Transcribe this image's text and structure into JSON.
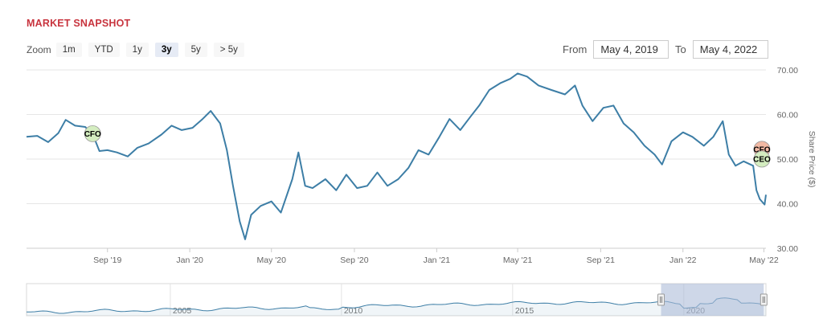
{
  "header": {
    "title": "MARKET SNAPSHOT",
    "title_color": "#c8343e"
  },
  "zoom": {
    "label": "Zoom",
    "buttons": [
      "1m",
      "YTD",
      "1y",
      "3y",
      "5y",
      "> 5y"
    ],
    "active": "3y"
  },
  "range": {
    "from_label": "From",
    "from_value": "May 4, 2019",
    "to_label": "To",
    "to_value": "May 4, 2022"
  },
  "chart_data": {
    "type": "line",
    "title": "",
    "ylabel": "Share Price ($)",
    "ylim": [
      30,
      70
    ],
    "yticks": [
      "30.00",
      "40.00",
      "50.00",
      "60.00",
      "70.00"
    ],
    "xlim": [
      "2019-05-04",
      "2022-05-04"
    ],
    "xticks": [
      "Sep '19",
      "Jan '20",
      "May '20",
      "Sep '20",
      "Jan '21",
      "May '21",
      "Sep '21",
      "Jan '22",
      "May '22"
    ],
    "line_color": "#3d7ea6",
    "grid": true,
    "series": [
      {
        "values": [
          [
            "2019-05-04",
            55.0
          ],
          [
            "2019-05-20",
            55.2
          ],
          [
            "2019-06-05",
            53.8
          ],
          [
            "2019-06-20",
            55.8
          ],
          [
            "2019-07-01",
            58.8
          ],
          [
            "2019-07-15",
            57.5
          ],
          [
            "2019-07-30",
            57.2
          ],
          [
            "2019-08-10",
            55.6
          ],
          [
            "2019-08-20",
            51.8
          ],
          [
            "2019-09-01",
            52.0
          ],
          [
            "2019-09-15",
            51.5
          ],
          [
            "2019-10-01",
            50.6
          ],
          [
            "2019-10-15",
            52.5
          ],
          [
            "2019-11-01",
            53.5
          ],
          [
            "2019-11-20",
            55.5
          ],
          [
            "2019-12-05",
            57.5
          ],
          [
            "2019-12-20",
            56.5
          ],
          [
            "2020-01-05",
            57.0
          ],
          [
            "2020-01-20",
            59.0
          ],
          [
            "2020-02-01",
            60.8
          ],
          [
            "2020-02-15",
            58.0
          ],
          [
            "2020-02-25",
            52.0
          ],
          [
            "2020-03-05",
            44.0
          ],
          [
            "2020-03-15",
            36.0
          ],
          [
            "2020-03-23",
            32.0
          ],
          [
            "2020-04-01",
            37.5
          ],
          [
            "2020-04-15",
            39.5
          ],
          [
            "2020-05-01",
            40.5
          ],
          [
            "2020-05-15",
            38.0
          ],
          [
            "2020-06-01",
            45.5
          ],
          [
            "2020-06-10",
            51.5
          ],
          [
            "2020-06-20",
            44.0
          ],
          [
            "2020-07-01",
            43.5
          ],
          [
            "2020-07-20",
            45.5
          ],
          [
            "2020-08-05",
            43.0
          ],
          [
            "2020-08-20",
            46.5
          ],
          [
            "2020-09-05",
            43.5
          ],
          [
            "2020-09-20",
            44.0
          ],
          [
            "2020-10-05",
            47.0
          ],
          [
            "2020-10-20",
            44.0
          ],
          [
            "2020-11-05",
            45.5
          ],
          [
            "2020-11-20",
            48.0
          ],
          [
            "2020-12-05",
            52.0
          ],
          [
            "2020-12-20",
            51.0
          ],
          [
            "2021-01-05",
            55.0
          ],
          [
            "2021-01-20",
            59.0
          ],
          [
            "2021-02-05",
            56.5
          ],
          [
            "2021-02-20",
            59.5
          ],
          [
            "2021-03-05",
            62.0
          ],
          [
            "2021-03-20",
            65.5
          ],
          [
            "2021-04-05",
            67.0
          ],
          [
            "2021-04-20",
            68.0
          ],
          [
            "2021-05-01",
            69.2
          ],
          [
            "2021-05-15",
            68.5
          ],
          [
            "2021-06-01",
            66.5
          ],
          [
            "2021-06-20",
            65.5
          ],
          [
            "2021-07-10",
            64.5
          ],
          [
            "2021-07-25",
            66.5
          ],
          [
            "2021-08-05",
            62.0
          ],
          [
            "2021-08-20",
            58.5
          ],
          [
            "2021-09-05",
            61.5
          ],
          [
            "2021-09-20",
            62.0
          ],
          [
            "2021-10-05",
            58.0
          ],
          [
            "2021-10-20",
            56.0
          ],
          [
            "2021-11-05",
            53.0
          ],
          [
            "2021-11-20",
            51.0
          ],
          [
            "2021-12-01",
            48.8
          ],
          [
            "2021-12-15",
            54.0
          ],
          [
            "2022-01-01",
            56.0
          ],
          [
            "2022-01-15",
            55.0
          ],
          [
            "2022-02-01",
            53.0
          ],
          [
            "2022-02-15",
            55.0
          ],
          [
            "2022-03-01",
            58.5
          ],
          [
            "2022-03-10",
            51.0
          ],
          [
            "2022-03-20",
            48.5
          ],
          [
            "2022-04-01",
            49.5
          ],
          [
            "2022-04-15",
            48.5
          ],
          [
            "2022-04-20",
            43.0
          ],
          [
            "2022-04-25",
            41.0
          ],
          [
            "2022-05-02",
            39.8
          ],
          [
            "2022-05-04",
            42.0
          ]
        ]
      }
    ],
    "flags": [
      {
        "label": "CFO",
        "date": "2019-08-10",
        "value": 55.7,
        "color": "#d4edc0"
      },
      {
        "label": "CFO",
        "date": "2022-04-28",
        "value": 52.2,
        "color": "#f2b9a4"
      },
      {
        "label": "CEO",
        "date": "2022-04-28",
        "value": 50.0,
        "color": "#d4edc0"
      }
    ],
    "navigator": {
      "xlim": [
        2000.8,
        2022.4
      ],
      "xticks": [
        "2005",
        "2010",
        "2015",
        "2020"
      ],
      "selection_start": "2019-05-04",
      "selection_end": "2022-05-04",
      "fill_color": "#3d7ea6",
      "selection_color": "#aebcd9"
    }
  }
}
